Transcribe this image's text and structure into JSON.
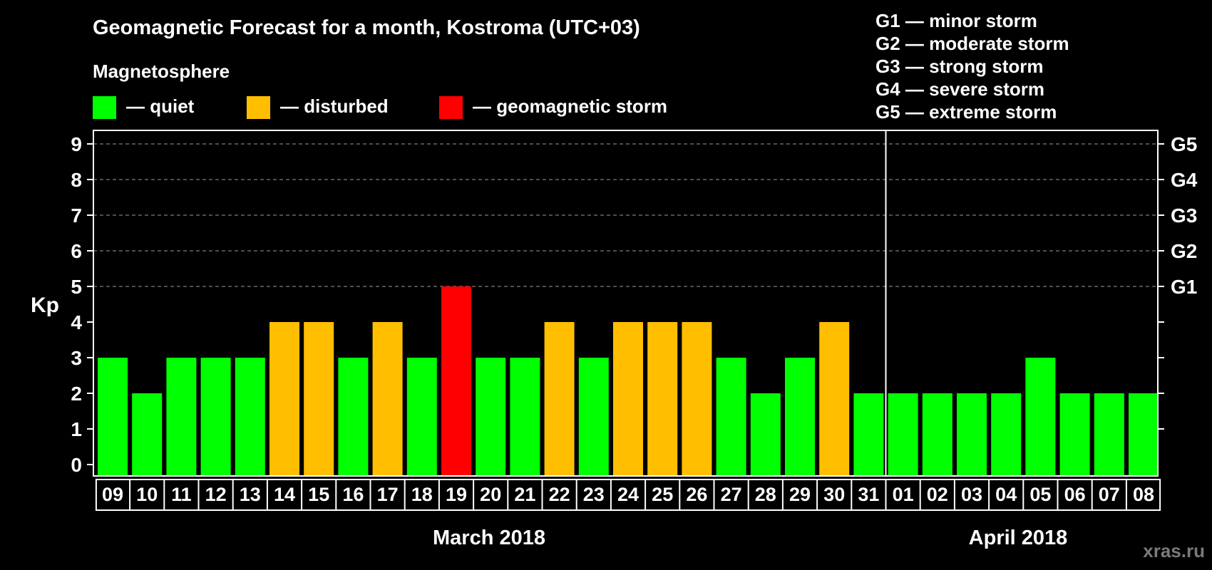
{
  "chart_data": {
    "type": "bar",
    "title": "Geomagnetic Forecast for a month, Kostroma (UTC+03)",
    "subtitle": "Magnetosphere",
    "ylabel": "Kp",
    "ylim": [
      0,
      9
    ],
    "yticks": [
      "0",
      "1",
      "2",
      "3",
      "4",
      "5",
      "6",
      "7",
      "8",
      "9"
    ],
    "right_axis_labels": [
      {
        "kp": 5,
        "label": "G1"
      },
      {
        "kp": 6,
        "label": "G2"
      },
      {
        "kp": 7,
        "label": "G3"
      },
      {
        "kp": 8,
        "label": "G4"
      },
      {
        "kp": 9,
        "label": "G5"
      }
    ],
    "categories": [
      "09",
      "10",
      "11",
      "12",
      "13",
      "14",
      "15",
      "16",
      "17",
      "18",
      "19",
      "20",
      "21",
      "22",
      "23",
      "24",
      "25",
      "26",
      "27",
      "28",
      "29",
      "30",
      "31",
      "01",
      "02",
      "03",
      "04",
      "05",
      "06",
      "07",
      "08"
    ],
    "values": [
      3,
      2,
      3,
      3,
      3,
      4,
      4,
      3,
      4,
      3,
      5,
      3,
      3,
      4,
      3,
      4,
      4,
      4,
      3,
      2,
      3,
      4,
      2,
      2,
      2,
      2,
      2,
      3,
      2,
      2,
      2
    ],
    "months": [
      {
        "label": "March 2018",
        "from": 0,
        "to": 22
      },
      {
        "label": "April 2018",
        "from": 23,
        "to": 30
      }
    ],
    "legend": [
      {
        "label": "— quiet",
        "color": "#00ff00",
        "rule": "Kp < 4"
      },
      {
        "label": "— disturbed",
        "color": "#ffbf00",
        "rule": "Kp = 4"
      },
      {
        "label": "— geomagnetic storm",
        "color": "#ff0000",
        "rule": "Kp >= 5"
      }
    ],
    "storm_scale": [
      "G1 — minor storm",
      "G2 — moderate storm",
      "G3 — strong storm",
      "G4 — severe storm",
      "G5 — extreme storm"
    ],
    "grid": true,
    "legend_position": "top"
  },
  "watermark": "xras.ru"
}
